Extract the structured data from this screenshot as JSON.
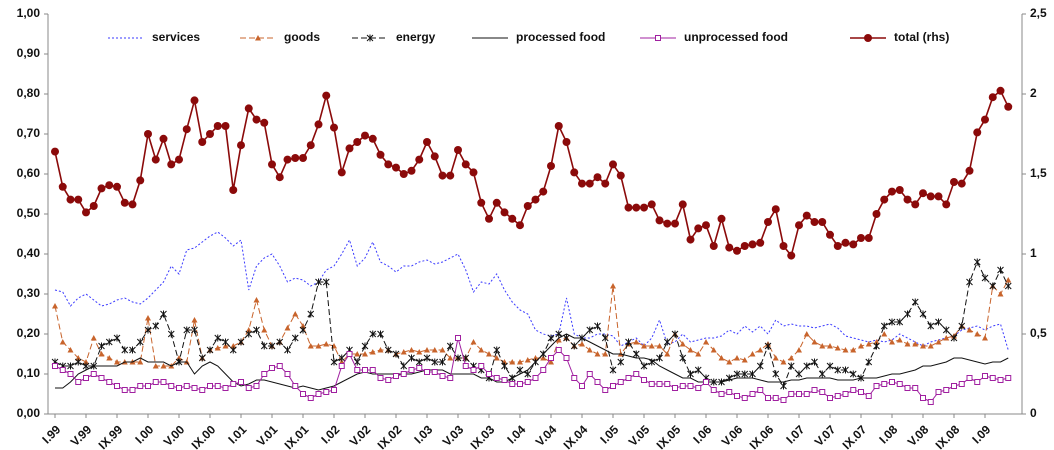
{
  "chart_data": {
    "type": "line",
    "legend": "top",
    "categories": [
      "I.99",
      null,
      null,
      null,
      "V.99",
      null,
      null,
      null,
      "IX.99",
      null,
      null,
      null,
      "I.00",
      null,
      null,
      null,
      "V.00",
      null,
      null,
      null,
      "IX.00",
      null,
      null,
      null,
      "I.01",
      null,
      null,
      null,
      "V.01",
      null,
      null,
      null,
      "IX.01",
      null,
      null,
      null,
      "I.02",
      null,
      null,
      null,
      "V.02",
      null,
      null,
      null,
      "IX.02",
      null,
      null,
      null,
      "I.03",
      null,
      null,
      null,
      "V.03",
      null,
      null,
      null,
      "IX.03",
      null,
      null,
      null,
      "I.04",
      null,
      null,
      null,
      "V.04",
      null,
      null,
      null,
      "IX.04",
      null,
      null,
      null,
      "I.05",
      null,
      null,
      null,
      "V.05",
      null,
      null,
      null,
      "IX.05",
      null,
      null,
      null,
      "I.06",
      null,
      null,
      null,
      "V.06",
      null,
      null,
      null,
      "IX.06",
      null,
      null,
      null,
      "I.07",
      null,
      null,
      null,
      "V.07",
      null,
      null,
      null,
      "IX.07",
      null,
      null,
      null,
      "I.08",
      null,
      null,
      null,
      "V.08",
      null,
      null,
      null,
      "IX.08",
      null,
      null,
      null,
      "I.09",
      null,
      null,
      null
    ],
    "ylim": [
      0,
      1
    ],
    "yticks": [
      {
        "value": 0,
        "label": "0,00"
      },
      {
        "value": 0.1,
        "label": "0,10"
      },
      {
        "value": 0.2,
        "label": "0,20"
      },
      {
        "value": 0.3,
        "label": "0,30"
      },
      {
        "value": 0.4,
        "label": "0,40"
      },
      {
        "value": 0.5,
        "label": "0,50"
      },
      {
        "value": 0.6,
        "label": "0,60"
      },
      {
        "value": 0.7,
        "label": "0,70"
      },
      {
        "value": 0.8,
        "label": "0,80"
      },
      {
        "value": 0.9,
        "label": "0,90"
      },
      {
        "value": 1,
        "label": "1,00"
      }
    ],
    "y2lim": [
      0,
      2.5
    ],
    "y2ticks": [
      0,
      {
        "value": 0.5,
        "label": "0,5"
      },
      1,
      {
        "value": 1.5,
        "label": "1,5"
      },
      2,
      {
        "value": 2.5,
        "label": "2,5"
      }
    ],
    "series": [
      {
        "name": "services",
        "color": "#3a3aff",
        "style": "dotted",
        "marker": "none",
        "values": [
          0.31,
          0.305,
          0.27,
          0.29,
          0.3,
          0.285,
          0.27,
          0.275,
          0.285,
          0.29,
          0.28,
          0.275,
          0.29,
          0.31,
          0.33,
          0.37,
          0.35,
          0.41,
          0.415,
          0.43,
          0.445,
          0.455,
          0.44,
          0.42,
          0.435,
          0.31,
          0.37,
          0.39,
          0.4,
          0.37,
          0.33,
          0.34,
          0.335,
          0.32,
          0.33,
          0.36,
          0.37,
          0.4,
          0.435,
          0.37,
          0.39,
          0.43,
          0.38,
          0.37,
          0.355,
          0.37,
          0.37,
          0.38,
          0.385,
          0.375,
          0.38,
          0.39,
          0.4,
          0.36,
          0.305,
          0.33,
          0.325,
          0.35,
          0.31,
          0.28,
          0.26,
          0.25,
          0.21,
          0.2,
          0.195,
          0.2,
          0.29,
          0.2,
          0.19,
          0.19,
          0.2,
          0.2,
          0.195,
          0.17,
          0.18,
          0.19,
          0.17,
          0.19,
          0.235,
          0.175,
          0.18,
          0.2,
          0.18,
          0.185,
          0.19,
          0.19,
          0.195,
          0.21,
          0.2,
          0.22,
          0.205,
          0.22,
          0.2,
          0.235,
          0.22,
          0.225,
          0.22,
          0.22,
          0.215,
          0.22,
          0.225,
          0.215,
          0.195,
          0.19,
          0.185,
          0.18,
          0.185,
          0.18,
          0.185,
          0.2,
          0.19,
          0.18,
          0.17,
          0.18,
          0.185,
          0.19,
          0.195,
          0.21,
          0.215,
          0.22,
          0.21,
          0.22,
          0.225,
          0.16
        ]
      },
      {
        "name": "goods",
        "color": "#c8642c",
        "style": "dashed",
        "marker": "triangle",
        "values": [
          0.27,
          0.18,
          0.16,
          0.14,
          0.13,
          0.19,
          0.15,
          0.14,
          0.13,
          0.13,
          0.13,
          0.13,
          0.24,
          0.12,
          0.12,
          0.12,
          0.14,
          0.13,
          0.235,
          0.14,
          0.16,
          0.165,
          0.17,
          0.17,
          0.18,
          0.21,
          0.285,
          0.21,
          0.17,
          0.18,
          0.215,
          0.25,
          0.22,
          0.17,
          0.17,
          0.175,
          0.17,
          0.13,
          0.15,
          0.15,
          0.15,
          0.155,
          0.16,
          0.16,
          0.15,
          0.155,
          0.16,
          0.155,
          0.16,
          0.16,
          0.16,
          0.14,
          0.14,
          0.14,
          0.18,
          0.16,
          0.15,
          0.14,
          0.13,
          0.13,
          0.13,
          0.135,
          0.14,
          0.14,
          0.13,
          0.185,
          0.19,
          0.17,
          0.175,
          0.16,
          0.15,
          0.15,
          0.32,
          0.15,
          0.175,
          0.18,
          0.17,
          0.17,
          0.17,
          0.15,
          0.2,
          0.175,
          0.16,
          0.15,
          0.18,
          0.16,
          0.14,
          0.13,
          0.14,
          0.135,
          0.15,
          0.16,
          0.175,
          0.14,
          0.13,
          0.14,
          0.16,
          0.2,
          0.18,
          0.17,
          0.17,
          0.165,
          0.16,
          0.16,
          0.17,
          0.175,
          0.18,
          0.2,
          0.18,
          0.185,
          0.175,
          0.175,
          0.17,
          0.17,
          0.18,
          0.19,
          0.195,
          0.22,
          0.21,
          0.2,
          0.19,
          0.32,
          0.3,
          0.335
        ]
      },
      {
        "name": "energy",
        "color": "#111111",
        "style": "dashed",
        "marker": "star",
        "values": [
          0.13,
          0.12,
          0.12,
          0.13,
          0.12,
          0.12,
          0.17,
          0.18,
          0.19,
          0.16,
          0.16,
          0.18,
          0.21,
          0.22,
          0.25,
          0.2,
          0.13,
          0.21,
          0.21,
          0.14,
          0.16,
          0.19,
          0.18,
          0.16,
          0.18,
          0.2,
          0.21,
          0.17,
          0.17,
          0.18,
          0.16,
          0.19,
          0.21,
          0.25,
          0.33,
          0.33,
          0.13,
          0.14,
          0.16,
          0.13,
          0.17,
          0.2,
          0.2,
          0.16,
          0.15,
          0.12,
          0.14,
          0.13,
          0.14,
          0.13,
          0.13,
          0.17,
          0.14,
          0.14,
          0.12,
          0.11,
          0.09,
          0.16,
          0.12,
          0.09,
          0.11,
          0.1,
          0.13,
          0.15,
          0.19,
          0.2,
          0.19,
          0.17,
          0.19,
          0.21,
          0.22,
          0.19,
          0.11,
          0.13,
          0.18,
          0.15,
          0.12,
          0.13,
          0.14,
          0.18,
          0.2,
          0.14,
          0.1,
          0.11,
          0.09,
          0.08,
          0.08,
          0.09,
          0.1,
          0.1,
          0.1,
          0.12,
          0.17,
          0.1,
          0.07,
          0.12,
          0.1,
          0.12,
          0.13,
          0.1,
          0.12,
          0.11,
          0.11,
          0.1,
          0.09,
          0.13,
          0.17,
          0.22,
          0.23,
          0.23,
          0.25,
          0.28,
          0.25,
          0.22,
          0.23,
          0.21,
          0.19,
          0.22,
          0.33,
          0.38,
          0.34,
          0.32,
          0.36,
          0.32
        ]
      },
      {
        "name": "processed food",
        "color": "#111111",
        "style": "solid",
        "marker": "none",
        "values": [
          0.065,
          0.065,
          0.08,
          0.1,
          0.11,
          0.12,
          0.12,
          0.12,
          0.12,
          0.13,
          0.13,
          0.14,
          0.13,
          0.13,
          0.13,
          0.12,
          0.13,
          0.13,
          0.1,
          0.12,
          0.13,
          0.12,
          0.1,
          0.08,
          0.07,
          0.075,
          0.085,
          0.085,
          0.08,
          0.075,
          0.07,
          0.065,
          0.07,
          0.065,
          0.06,
          0.065,
          0.07,
          0.08,
          0.09,
          0.1,
          0.105,
          0.1,
          0.1,
          0.1,
          0.1,
          0.1,
          0.1,
          0.105,
          0.11,
          0.11,
          0.11,
          0.1,
          0.1,
          0.1,
          0.1,
          0.09,
          0.09,
          0.08,
          0.08,
          0.09,
          0.1,
          0.11,
          0.13,
          0.15,
          0.17,
          0.19,
          0.2,
          0.19,
          0.19,
          0.18,
          0.17,
          0.16,
          0.15,
          0.15,
          0.145,
          0.14,
          0.14,
          0.135,
          0.12,
          0.11,
          0.1,
          0.09,
          0.09,
          0.08,
          0.08,
          0.08,
          0.08,
          0.085,
          0.09,
          0.09,
          0.09,
          0.085,
          0.08,
          0.08,
          0.08,
          0.085,
          0.085,
          0.09,
          0.09,
          0.09,
          0.09,
          0.085,
          0.085,
          0.085,
          0.09,
          0.09,
          0.09,
          0.095,
          0.1,
          0.1,
          0.105,
          0.11,
          0.12,
          0.12,
          0.125,
          0.13,
          0.14,
          0.14,
          0.135,
          0.13,
          0.125,
          0.13,
          0.13,
          0.14
        ]
      },
      {
        "name": "unprocessed food",
        "color": "#a020a0",
        "style": "solid",
        "marker": "square",
        "values": [
          0.12,
          0.11,
          0.1,
          0.08,
          0.09,
          0.1,
          0.09,
          0.08,
          0.07,
          0.06,
          0.06,
          0.07,
          0.07,
          0.08,
          0.08,
          0.07,
          0.065,
          0.07,
          0.065,
          0.06,
          0.07,
          0.07,
          0.065,
          0.075,
          0.08,
          0.065,
          0.07,
          0.1,
          0.115,
          0.12,
          0.1,
          0.07,
          0.05,
          0.04,
          0.05,
          0.055,
          0.06,
          0.12,
          0.15,
          0.11,
          0.11,
          0.11,
          0.09,
          0.085,
          0.095,
          0.1,
          0.11,
          0.115,
          0.105,
          0.105,
          0.095,
          0.09,
          0.19,
          0.12,
          0.11,
          0.12,
          0.1,
          0.09,
          0.085,
          0.075,
          0.075,
          0.08,
          0.09,
          0.11,
          0.14,
          0.16,
          0.14,
          0.09,
          0.07,
          0.1,
          0.08,
          0.06,
          0.07,
          0.08,
          0.09,
          0.1,
          0.085,
          0.075,
          0.075,
          0.075,
          0.065,
          0.07,
          0.07,
          0.065,
          0.08,
          0.06,
          0.05,
          0.055,
          0.045,
          0.04,
          0.05,
          0.06,
          0.04,
          0.04,
          0.035,
          0.05,
          0.05,
          0.05,
          0.06,
          0.055,
          0.04,
          0.045,
          0.05,
          0.06,
          0.055,
          0.045,
          0.07,
          0.075,
          0.08,
          0.075,
          0.065,
          0.065,
          0.04,
          0.03,
          0.055,
          0.06,
          0.07,
          0.075,
          0.09,
          0.08,
          0.095,
          0.09,
          0.085,
          0.09
        ]
      },
      {
        "name": "total (rhs)",
        "color": "#8b0a0a",
        "style": "solid",
        "marker": "circle",
        "axis": "y2",
        "values": [
          1.64,
          1.42,
          1.34,
          1.34,
          1.26,
          1.3,
          1.41,
          1.43,
          1.42,
          1.32,
          1.31,
          1.46,
          1.75,
          1.59,
          1.72,
          1.56,
          1.59,
          1.78,
          1.96,
          1.7,
          1.75,
          1.8,
          1.8,
          1.4,
          1.68,
          1.91,
          1.84,
          1.82,
          1.56,
          1.48,
          1.59,
          1.6,
          1.6,
          1.68,
          1.81,
          1.99,
          1.79,
          1.51,
          1.66,
          1.7,
          1.74,
          1.72,
          1.62,
          1.56,
          1.54,
          1.5,
          1.52,
          1.59,
          1.7,
          1.61,
          1.49,
          1.49,
          1.65,
          1.56,
          1.51,
          1.32,
          1.22,
          1.32,
          1.26,
          1.22,
          1.18,
          1.3,
          1.34,
          1.39,
          1.55,
          1.8,
          1.7,
          1.51,
          1.44,
          1.44,
          1.48,
          1.44,
          1.56,
          1.49,
          1.29,
          1.29,
          1.29,
          1.31,
          1.21,
          1.19,
          1.19,
          1.31,
          1.09,
          1.16,
          1.18,
          1.05,
          1.22,
          1.04,
          1.02,
          1.05,
          1.06,
          1.07,
          1.2,
          1.28,
          1.05,
          0.99,
          1.18,
          1.24,
          1.2,
          1.2,
          1.12,
          1.05,
          1.07,
          1.06,
          1.1,
          1.1,
          1.25,
          1.34,
          1.39,
          1.4,
          1.34,
          1.31,
          1.38,
          1.36,
          1.36,
          1.31,
          1.45,
          1.44,
          1.52,
          1.76,
          1.84,
          1.98,
          2.02,
          1.92
        ]
      }
    ]
  }
}
